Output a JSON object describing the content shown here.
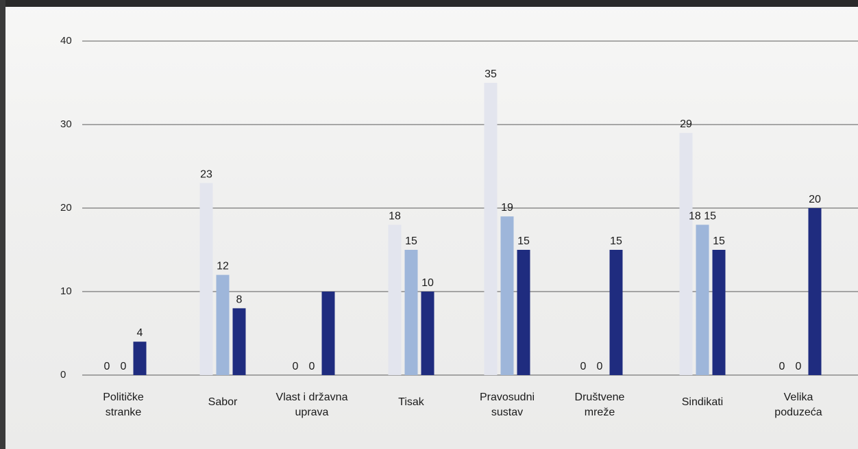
{
  "chart_data": {
    "type": "bar",
    "categories": [
      [
        "Političke",
        "stranke"
      ],
      [
        "Sabor"
      ],
      [
        "Vlast i državna",
        "uprava"
      ],
      [
        "Tisak"
      ],
      [
        "Pravosudni",
        "sustav"
      ],
      [
        "Društvene",
        "mreže"
      ],
      [
        "Sindikati"
      ],
      [
        "Velika",
        "poduzeća"
      ]
    ],
    "series": [
      {
        "values": [
          0,
          23,
          0,
          18,
          35,
          0,
          29,
          0
        ]
      },
      {
        "values": [
          0,
          12,
          0,
          15,
          19,
          0,
          18,
          0
        ]
      },
      {
        "values": [
          4,
          8,
          10,
          10,
          15,
          15,
          15,
          20
        ]
      }
    ],
    "value_labels": [
      [
        "0",
        "23",
        "0",
        "18",
        "35",
        "0",
        "29",
        "0"
      ],
      [
        "0",
        "12",
        "0",
        "15",
        "19",
        "0",
        "18 15",
        "0"
      ],
      [
        "4",
        "8",
        "",
        "10",
        "15",
        "15",
        "15",
        "20"
      ]
    ],
    "y_ticks": [
      0,
      10,
      20,
      30,
      40
    ],
    "ylim": [
      0,
      40
    ],
    "grid": true,
    "legend": "none",
    "title": "",
    "xlabel": "",
    "ylabel": "",
    "colors": [
      "#e3e5ee",
      "#9eb6da",
      "#1f2c7f"
    ]
  }
}
